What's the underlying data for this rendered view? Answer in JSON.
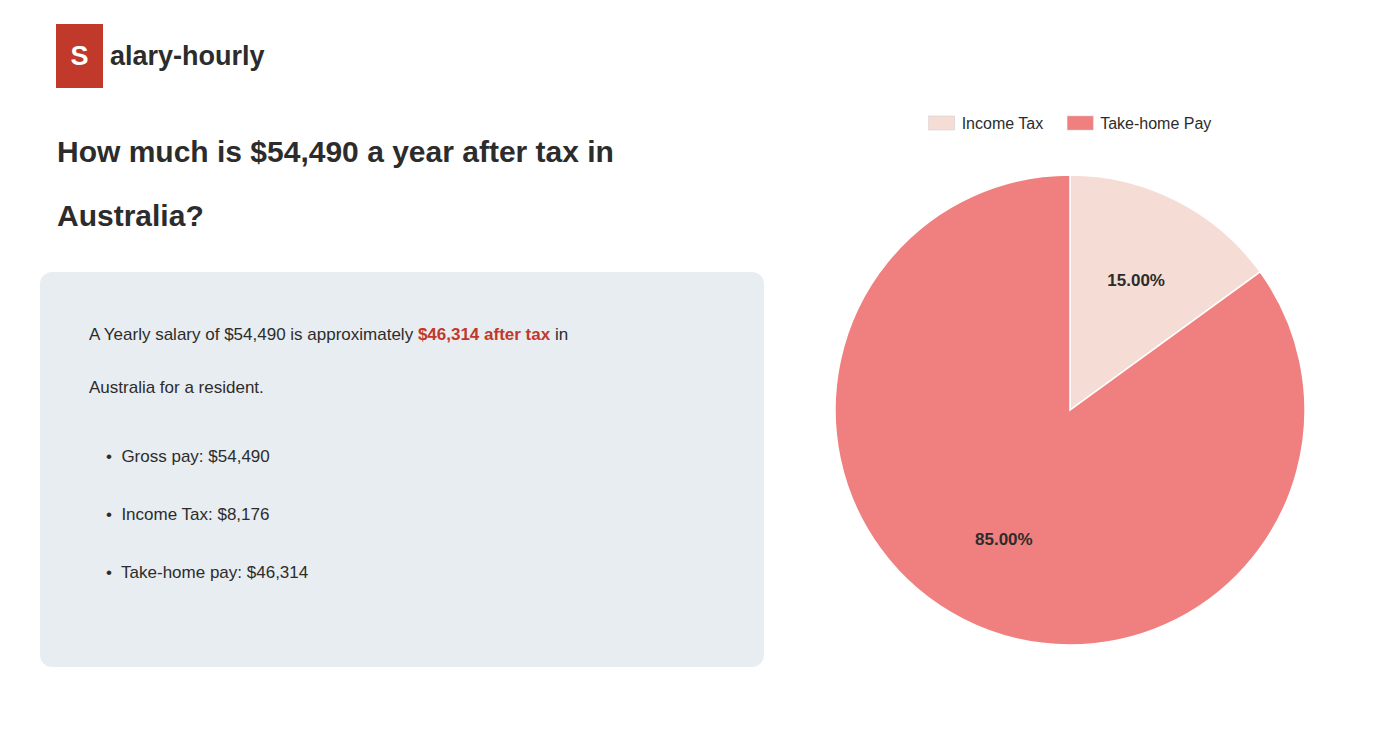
{
  "chart_data": {
    "type": "pie",
    "title": [
      "How much is $54,490 a year after tax in",
      "Australia?"
    ],
    "categories": [
      "Income Tax",
      "Take-home Pay"
    ],
    "values": [
      15.0,
      85.0
    ],
    "value_labels": [
      "15.00%",
      "85.00%"
    ],
    "colors": [
      "#f5ddd5",
      "#f08080"
    ],
    "data_labels": true,
    "legend": "top",
    "annotations": [
      {
        "text": "S",
        "color": "#c0392b"
      },
      {
        "text": "alary-hourly"
      },
      {
        "text": "A Yearly salary of $54,490 is approximately "
      },
      {
        "text": "$46,314 after tax",
        "color": "#c0392b"
      },
      {
        "text": " in"
      },
      {
        "text": "Australia for a resident."
      },
      {
        "text": "•  Gross pay: $54,490"
      },
      {
        "text": "•  Income Tax: $8,176"
      },
      {
        "text": "•  Take-home pay: $46,314"
      }
    ]
  }
}
